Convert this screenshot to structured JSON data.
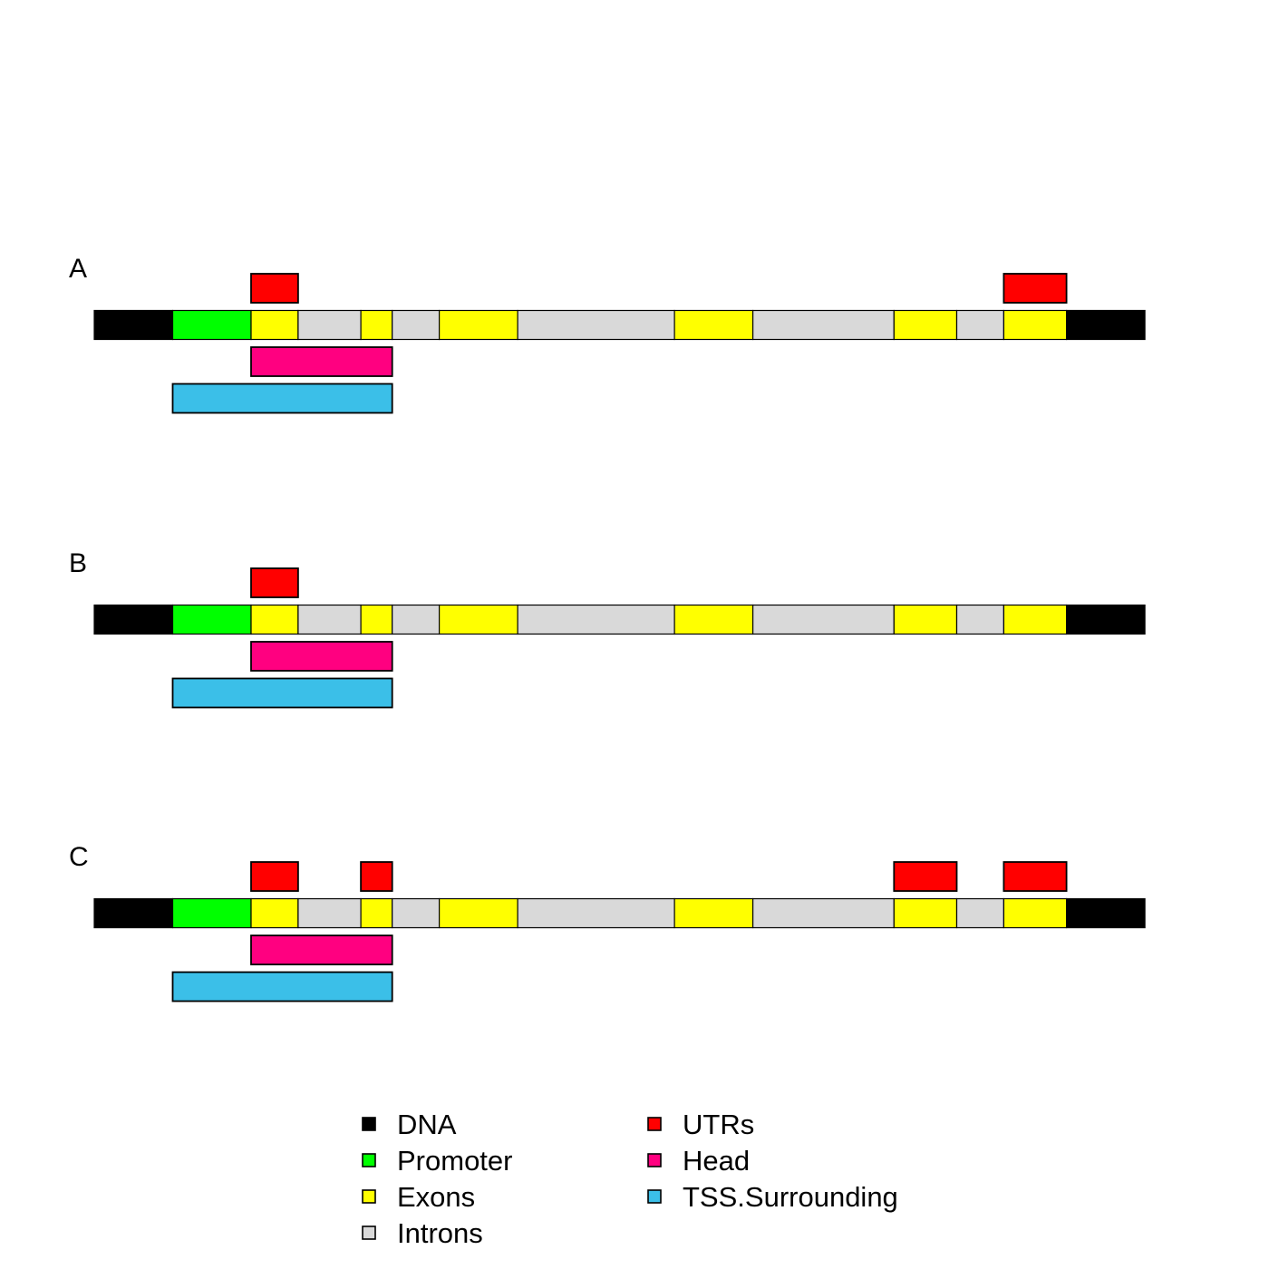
{
  "colors": {
    "dna": "#000000",
    "promoter": "#00ff00",
    "exons": "#ffff00",
    "introns": "#d9d9d9",
    "utrs": "#ff0000",
    "head": "#ff0080",
    "tss": "#3bbfe8"
  },
  "gene_model": {
    "segments": [
      {
        "type": "dna",
        "start": 0,
        "end": 1
      },
      {
        "type": "promoter",
        "start": 1,
        "end": 2
      },
      {
        "type": "exons",
        "start": 2,
        "end": 2.6
      },
      {
        "type": "introns",
        "start": 2.6,
        "end": 3.4
      },
      {
        "type": "exons",
        "start": 3.4,
        "end": 3.8
      },
      {
        "type": "introns",
        "start": 3.8,
        "end": 4.4
      },
      {
        "type": "exons",
        "start": 4.4,
        "end": 5.4
      },
      {
        "type": "introns",
        "start": 5.4,
        "end": 7.4
      },
      {
        "type": "exons",
        "start": 7.4,
        "end": 8.4
      },
      {
        "type": "introns",
        "start": 8.4,
        "end": 10.2
      },
      {
        "type": "exons",
        "start": 10.2,
        "end": 11
      },
      {
        "type": "introns",
        "start": 11,
        "end": 11.6
      },
      {
        "type": "exons",
        "start": 11.6,
        "end": 12.4
      },
      {
        "type": "dna",
        "start": 12.4,
        "end": 13.4
      }
    ],
    "head": {
      "start": 2,
      "end": 3.8
    },
    "tss_surrounding": {
      "start": 1,
      "end": 3.8
    }
  },
  "panels": [
    {
      "label": "A",
      "utrs": [
        {
          "start": 2,
          "end": 2.6
        },
        {
          "start": 11.6,
          "end": 12.4
        }
      ]
    },
    {
      "label": "B",
      "utrs": [
        {
          "start": 2,
          "end": 2.6
        }
      ]
    },
    {
      "label": "C",
      "utrs": [
        {
          "start": 2,
          "end": 2.6
        },
        {
          "start": 3.4,
          "end": 3.8
        },
        {
          "start": 10.2,
          "end": 11
        },
        {
          "start": 11.6,
          "end": 12.4
        }
      ]
    }
  ],
  "legend": {
    "left": [
      {
        "key": "dna",
        "label": "DNA"
      },
      {
        "key": "promoter",
        "label": "Promoter"
      },
      {
        "key": "exons",
        "label": "Exons"
      },
      {
        "key": "introns",
        "label": "Introns"
      }
    ],
    "right": [
      {
        "key": "utrs",
        "label": "UTRs"
      },
      {
        "key": "head",
        "label": "Head"
      },
      {
        "key": "tss",
        "label": "TSS.Surrounding"
      }
    ]
  }
}
